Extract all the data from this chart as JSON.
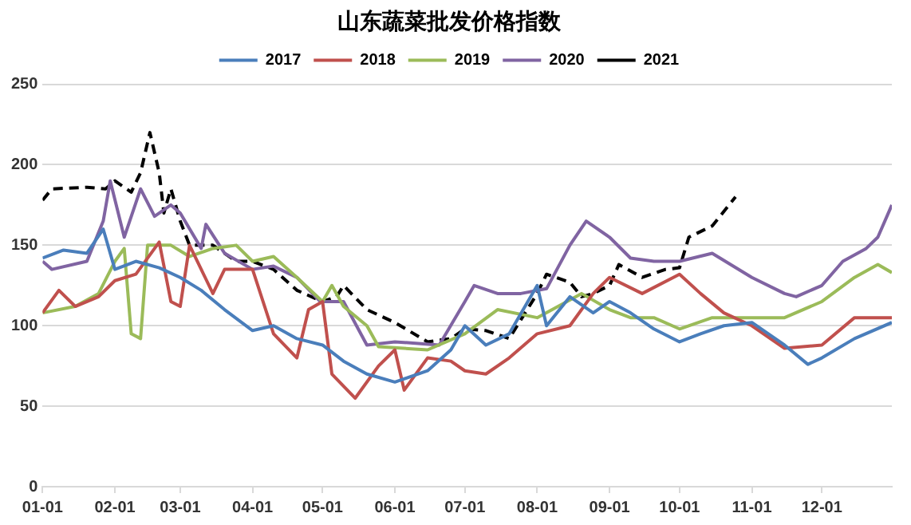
{
  "chart_data": {
    "type": "line",
    "title": "山东蔬菜批发价格指数",
    "xlim": [
      "--01-01",
      "--12-31"
    ],
    "xticks": [
      {
        "value": "--01-01",
        "label": "01-01"
      },
      {
        "value": "--02-01",
        "label": "02-01"
      },
      {
        "value": "--03-01",
        "label": "03-01"
      },
      {
        "value": "--04-01",
        "label": "04-01"
      },
      {
        "value": "--05-01",
        "label": "05-01"
      },
      {
        "value": "--06-01",
        "label": "06-01"
      },
      {
        "value": "--07-01",
        "label": "07-01"
      },
      {
        "value": "--08-01",
        "label": "08-01"
      },
      {
        "value": "--09-01",
        "label": "09-01"
      },
      {
        "value": "--10-01",
        "label": "10-01"
      },
      {
        "value": "--11-01",
        "label": "11-01"
      },
      {
        "value": "--12-01",
        "label": "12-01"
      }
    ],
    "ylim": [
      0,
      250
    ],
    "yticks": [
      0,
      50,
      100,
      150,
      200,
      250
    ],
    "grid": "y",
    "legend": "top",
    "marker": "none",
    "series": [
      {
        "name": "2017",
        "color": "#4a7ebb",
        "line_style": "solid",
        "x": [
          "--01-01",
          "--01-10",
          "--01-20",
          "--01-27",
          "--02-01",
          "--02-10",
          "--02-20",
          "--03-01",
          "--03-10",
          "--03-20",
          "--04-01",
          "--04-10",
          "--04-20",
          "--05-01",
          "--05-10",
          "--05-20",
          "--06-01",
          "--06-15",
          "--06-25",
          "--07-01",
          "--07-10",
          "--07-20",
          "--08-01",
          "--08-05",
          "--08-15",
          "--08-25",
          "--09-01",
          "--09-10",
          "--09-20",
          "--10-01",
          "--10-10",
          "--10-20",
          "--11-01",
          "--11-15",
          "--11-25",
          "--12-01",
          "--12-15",
          "--12-31"
        ],
        "values": [
          142,
          147,
          145,
          160,
          135,
          140,
          136,
          130,
          122,
          110,
          97,
          100,
          92,
          88,
          78,
          70,
          65,
          72,
          85,
          100,
          88,
          95,
          125,
          100,
          118,
          108,
          115,
          108,
          98,
          90,
          95,
          100,
          102,
          88,
          76,
          80,
          92,
          102
        ]
      },
      {
        "name": "2018",
        "color": "#c0504d",
        "line_style": "solid",
        "x": [
          "--01-01",
          "--01-08",
          "--01-15",
          "--01-25",
          "--02-01",
          "--02-10",
          "--02-20",
          "--02-25",
          "--03-01",
          "--03-05",
          "--03-15",
          "--03-20",
          "--04-01",
          "--04-10",
          "--04-20",
          "--04-25",
          "--05-01",
          "--05-05",
          "--05-15",
          "--05-25",
          "--06-01",
          "--06-05",
          "--06-15",
          "--06-25",
          "--07-01",
          "--07-10",
          "--07-20",
          "--08-01",
          "--08-15",
          "--08-25",
          "--09-01",
          "--09-15",
          "--10-01",
          "--10-10",
          "--10-20",
          "--11-01",
          "--11-15",
          "--12-01",
          "--12-15",
          "--12-31"
        ],
        "values": [
          108,
          122,
          112,
          118,
          128,
          132,
          152,
          115,
          112,
          150,
          120,
          135,
          135,
          95,
          80,
          110,
          115,
          70,
          55,
          75,
          85,
          60,
          80,
          78,
          72,
          70,
          80,
          95,
          100,
          120,
          130,
          120,
          132,
          120,
          108,
          100,
          86,
          88,
          105,
          105
        ]
      },
      {
        "name": "2019",
        "color": "#9bbb59",
        "line_style": "solid",
        "x": [
          "--01-01",
          "--01-15",
          "--01-25",
          "--02-01",
          "--02-05",
          "--02-08",
          "--02-12",
          "--02-15",
          "--02-25",
          "--03-05",
          "--03-15",
          "--03-25",
          "--04-01",
          "--04-10",
          "--04-20",
          "--05-01",
          "--05-05",
          "--05-10",
          "--05-20",
          "--05-25",
          "--06-15",
          "--07-01",
          "--07-15",
          "--08-01",
          "--08-20",
          "--09-01",
          "--09-10",
          "--09-20",
          "--10-01",
          "--10-15",
          "--11-01",
          "--11-15",
          "--12-01",
          "--12-15",
          "--12-25",
          "--12-31"
        ],
        "values": [
          108,
          112,
          120,
          140,
          148,
          95,
          92,
          150,
          150,
          143,
          148,
          150,
          140,
          143,
          130,
          115,
          125,
          112,
          100,
          87,
          85,
          95,
          110,
          105,
          120,
          110,
          105,
          105,
          98,
          105,
          105,
          105,
          115,
          130,
          138,
          133
        ]
      },
      {
        "name": "2020",
        "color": "#8064a2",
        "line_style": "solid",
        "x": [
          "--01-01",
          "--01-05",
          "--01-20",
          "--01-27",
          "--01-30",
          "--02-05",
          "--02-12",
          "--02-18",
          "--02-25",
          "--03-01",
          "--03-10",
          "--03-12",
          "--03-20",
          "--04-01",
          "--04-10",
          "--04-20",
          "--04-30",
          "--05-10",
          "--05-20",
          "--06-01",
          "--06-20",
          "--07-01",
          "--07-05",
          "--07-15",
          "--07-25",
          "--08-05",
          "--08-15",
          "--08-22",
          "--09-01",
          "--09-10",
          "--09-20",
          "--10-01",
          "--10-15",
          "--11-01",
          "--11-15",
          "--11-20",
          "--12-01",
          "--12-10",
          "--12-20",
          "--12-25",
          "--12-31"
        ],
        "values": [
          140,
          135,
          140,
          165,
          190,
          155,
          185,
          168,
          175,
          170,
          148,
          163,
          145,
          135,
          137,
          130,
          115,
          115,
          88,
          90,
          88,
          115,
          125,
          120,
          120,
          123,
          150,
          165,
          155,
          142,
          140,
          140,
          145,
          130,
          120,
          118,
          125,
          140,
          148,
          155,
          175
        ]
      },
      {
        "name": "2021",
        "color": "#000000",
        "line_style": "dashed",
        "x": [
          "--01-01",
          "--01-05",
          "--01-20",
          "--01-28",
          "--02-01",
          "--02-08",
          "--02-12",
          "--02-16",
          "--02-20",
          "--02-22",
          "--02-25",
          "--03-01",
          "--03-05",
          "--03-15",
          "--03-25",
          "--04-01",
          "--04-10",
          "--04-20",
          "--05-01",
          "--05-07",
          "--05-10",
          "--05-20",
          "--06-01",
          "--06-15",
          "--06-25",
          "--07-01",
          "--07-10",
          "--07-20",
          "--08-01",
          "--08-05",
          "--08-15",
          "--08-20",
          "--08-25",
          "--09-01",
          "--09-05",
          "--09-15",
          "--09-25",
          "--10-01",
          "--10-05",
          "--10-15",
          "--10-25"
        ],
        "values": [
          178,
          185,
          186,
          185,
          190,
          183,
          195,
          220,
          195,
          170,
          185,
          165,
          150,
          150,
          140,
          140,
          135,
          122,
          115,
          118,
          125,
          110,
          102,
          90,
          92,
          98,
          97,
          92,
          120,
          132,
          127,
          118,
          120,
          125,
          138,
          130,
          135,
          136,
          155,
          162,
          180
        ]
      }
    ]
  }
}
